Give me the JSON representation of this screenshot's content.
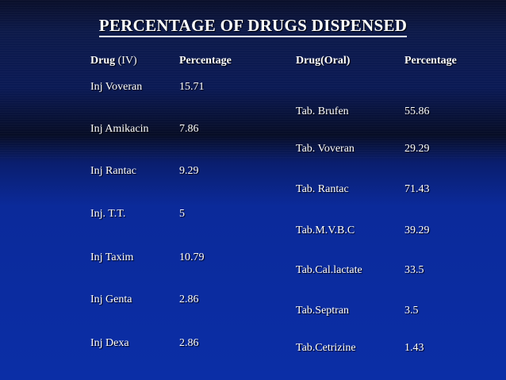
{
  "title": "PERCENTAGE OF DRUGS DISPENSED",
  "iv_table": {
    "header_drug": "Drug",
    "header_drug_route": "(IV)",
    "header_percentage": "Percentage",
    "rows": [
      {
        "drug": "Inj Voveran",
        "percentage": "15.71"
      },
      {
        "drug": "Inj Amikacin",
        "percentage": "7.86"
      },
      {
        "drug": "Inj Rantac",
        "percentage": "9.29"
      },
      {
        "drug": "Inj. T.T.",
        "percentage": "5"
      },
      {
        "drug": "Inj Taxim",
        "percentage": "10.79"
      },
      {
        "drug": "Inj Genta",
        "percentage": "2.86"
      },
      {
        "drug": "Inj Dexa",
        "percentage": "2.86"
      }
    ]
  },
  "oral_table": {
    "header_drug": "Drug(Oral)",
    "header_percentage": "Percentage",
    "rows": [
      {
        "drug": "Tab. Brufen",
        "percentage": "55.86"
      },
      {
        "drug": "Tab. Voveran",
        "percentage": "29.29"
      },
      {
        "drug": "Tab. Rantac",
        "percentage": "71.43"
      },
      {
        "drug": "Tab.M.V.B.C",
        "percentage": "39.29"
      },
      {
        "drug": "Tab.Cal.lactate",
        "percentage": "33.5"
      },
      {
        "drug": "Tab.Septran",
        "percentage": "3.5"
      },
      {
        "drug": "Tab.Cetrizine",
        "percentage": "1.43"
      }
    ]
  }
}
